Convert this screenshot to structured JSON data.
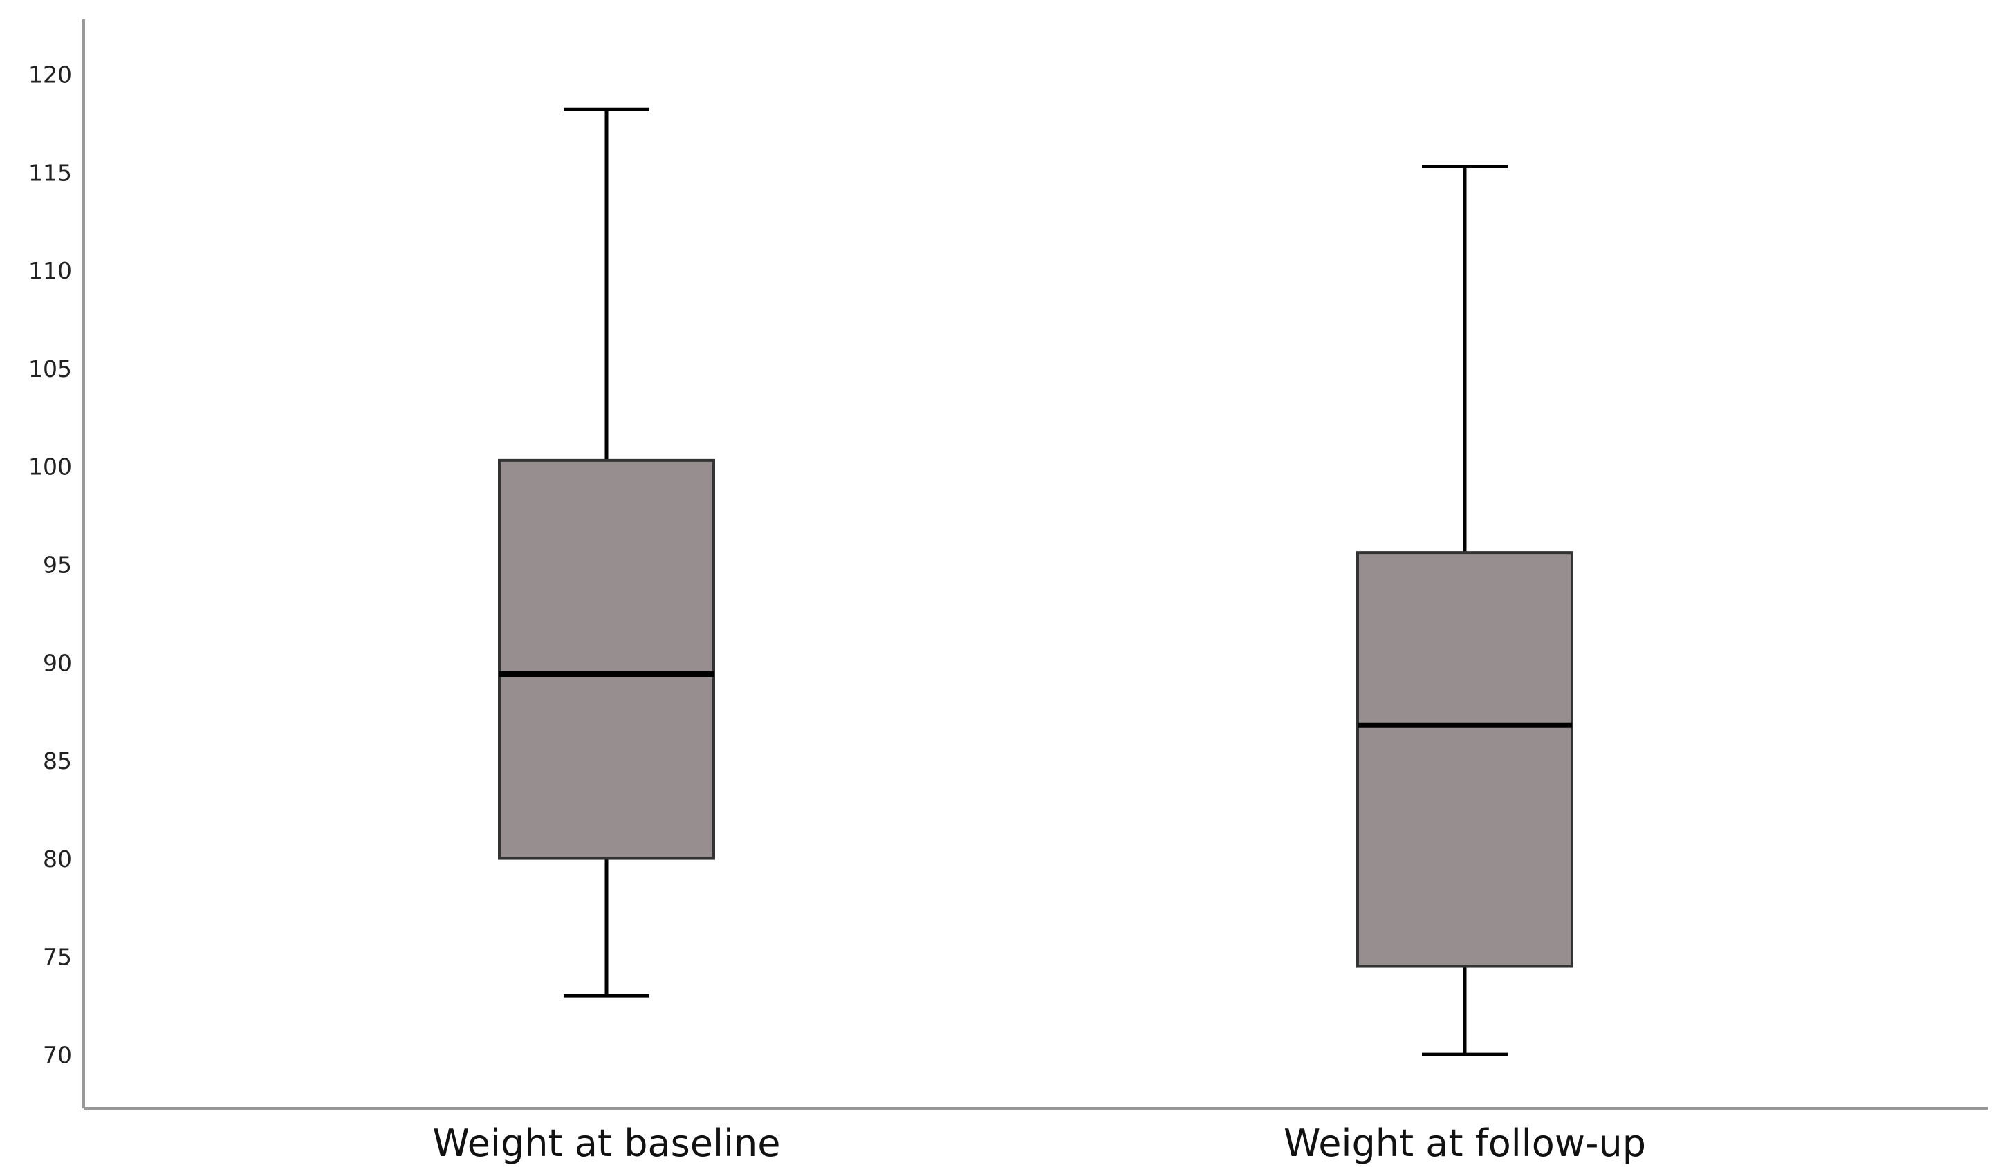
{
  "chart_data": {
    "type": "boxplot",
    "title": "",
    "xlabel": "",
    "ylabel": "",
    "ylim": [
      68,
      124
    ],
    "yticks": [
      70,
      75,
      80,
      85,
      90,
      95,
      100,
      105,
      110,
      115,
      120
    ],
    "grid": false,
    "box_color": "#978f8f",
    "line_color": "#000000",
    "axis_color": "#999999",
    "categories": [
      "Weight at baseline",
      "Weight at follow-up"
    ],
    "boxes": [
      {
        "category": "Weight at baseline",
        "whisker_low": 73.1,
        "q1": 80.1,
        "median": 89.5,
        "q3": 100.4,
        "whisker_high": 118.3
      },
      {
        "category": "Weight at follow-up",
        "whisker_low": 70.1,
        "q1": 74.6,
        "median": 86.9,
        "q3": 95.7,
        "whisker_high": 115.4
      }
    ]
  }
}
